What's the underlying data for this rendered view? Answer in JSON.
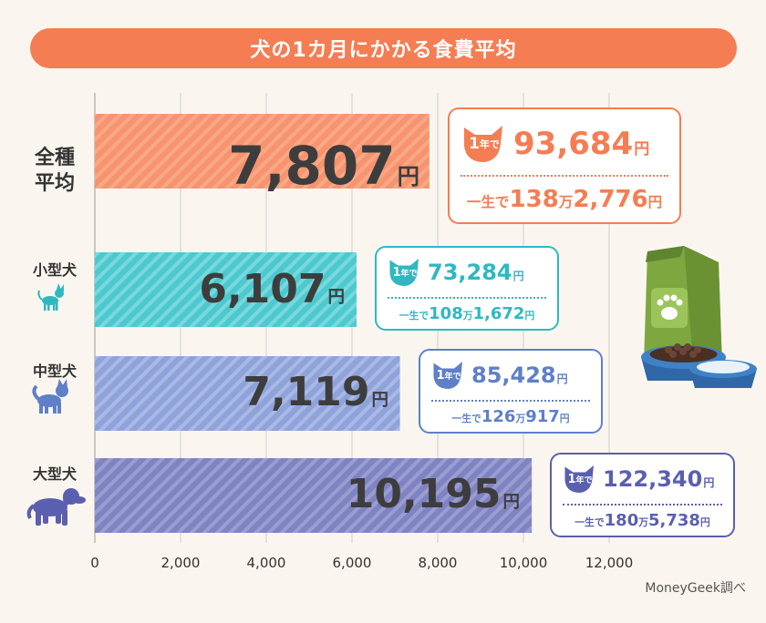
{
  "title": "犬の1カ月にかかる食費平均",
  "source": "MoneyGeek調べ",
  "colors": {
    "title_bg": "#f57d53",
    "all": "#f7936f",
    "small": "#4cc9cf",
    "medium": "#8ea3da",
    "large": "#7f83c2",
    "grid": "#cfcfcf"
  },
  "chart_data": {
    "type": "bar",
    "orientation": "horizontal",
    "title": "犬の1カ月にかかる食費平均",
    "categories": [
      "全種平均",
      "小型犬",
      "中型犬",
      "大型犬"
    ],
    "values": [
      7807,
      6107,
      7119,
      10195
    ],
    "value_unit": "円",
    "xlim": [
      0,
      12000
    ],
    "xticks": [
      "0",
      "2,000",
      "4,000",
      "6,000",
      "8,000",
      "10,000",
      "12,000"
    ],
    "grid": true
  },
  "bars": [
    {
      "label_line1": "全種",
      "label_line2": "平均",
      "value_text": "7,807",
      "unit": "円",
      "badge_num": "1",
      "badge_text": "年で",
      "year_value": "93,684",
      "year_unit": "円",
      "life_prefix": "一生で",
      "life_man": "138",
      "life_man_unit": "万",
      "life_rest": "2,776",
      "life_unit": "円"
    },
    {
      "label_line1": "小型犬",
      "label_line2": "",
      "value_text": "6,107",
      "unit": "円",
      "badge_num": "1",
      "badge_text": "年で",
      "year_value": "73,284",
      "year_unit": "円",
      "life_prefix": "一生で",
      "life_man": "108",
      "life_man_unit": "万",
      "life_rest": "1,672",
      "life_unit": "円"
    },
    {
      "label_line1": "中型犬",
      "label_line2": "",
      "value_text": "7,119",
      "unit": "円",
      "badge_num": "1",
      "badge_text": "年で",
      "year_value": "85,428",
      "year_unit": "円",
      "life_prefix": "一生で",
      "life_man": "126",
      "life_man_unit": "万",
      "life_rest": "917",
      "life_unit": "円"
    },
    {
      "label_line1": "大型犬",
      "label_line2": "",
      "value_text": "10,195",
      "unit": "円",
      "badge_num": "1",
      "badge_text": "年で",
      "year_value": "122,340",
      "year_unit": "円",
      "life_prefix": "一生で",
      "life_man": "180",
      "life_man_unit": "万",
      "life_rest": "5,738",
      "life_unit": "円"
    }
  ],
  "icons": [
    "chihuahua-icon",
    "shiba-dog-icon",
    "large-dog-icon",
    "dog-food-bag-icon",
    "dog-bowl-icon"
  ]
}
